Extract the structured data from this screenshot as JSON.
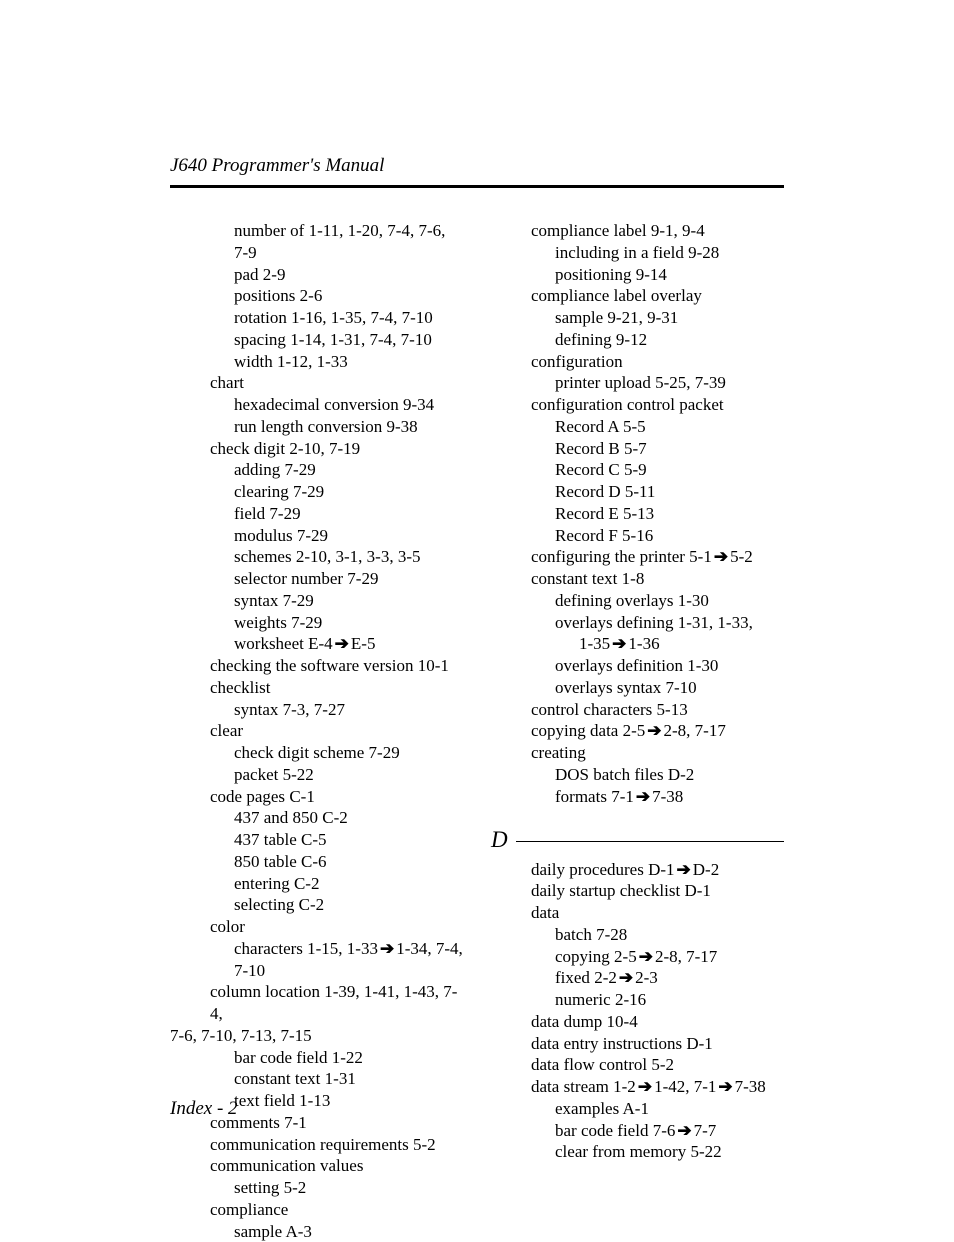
{
  "header": {
    "title": "J640 Programmer's Manual"
  },
  "footer": {
    "label": "Index - 2"
  },
  "section": {
    "letter": "D"
  },
  "arrow_glyph": "➔",
  "left": [
    {
      "i": 2,
      "t": "number of",
      "sep": "  ",
      "p": "1-11, 1-20, 7-4, 7-6, 7-9"
    },
    {
      "i": 2,
      "t": "pad",
      "sep": "  ",
      "p": "2-9"
    },
    {
      "i": 2,
      "t": "positions",
      "sep": "  ",
      "p": "2-6"
    },
    {
      "i": 2,
      "t": "rotation",
      "sep": "  ",
      "p": "1-16, 1-35, 7-4, 7-10"
    },
    {
      "i": 2,
      "t": "spacing",
      "sep": "  ",
      "p": "1-14, 1-31, 7-4, 7-10"
    },
    {
      "i": 2,
      "t": "width",
      "sep": "  ",
      "p": "1-12, 1-33"
    },
    {
      "i": 1,
      "t": "chart",
      "sep": "",
      "p": ""
    },
    {
      "i": 2,
      "t": "hexadecimal conversion",
      "sep": "  ",
      "p": "9-34"
    },
    {
      "i": 2,
      "t": "run length conversion",
      "sep": "  ",
      "p": "9-38"
    },
    {
      "i": 1,
      "t": "check digit",
      "sep": "  ",
      "p": "2-10, 7-19"
    },
    {
      "i": 2,
      "t": "adding",
      "sep": "  ",
      "p": "7-29"
    },
    {
      "i": 2,
      "t": "clearing",
      "sep": "  ",
      "p": "7-29"
    },
    {
      "i": 2,
      "t": "field",
      "sep": "  ",
      "p": "7-29"
    },
    {
      "i": 2,
      "t": "modulus",
      "sep": "  ",
      "p": "7-29"
    },
    {
      "i": 2,
      "t": "schemes",
      "sep": "  ",
      "p": "2-10, 3-1, 3-3, 3-5"
    },
    {
      "i": 2,
      "t": "selector number",
      "sep": "  ",
      "p": "7-29"
    },
    {
      "i": 2,
      "t": "syntax",
      "sep": "  ",
      "p": "7-29"
    },
    {
      "i": 2,
      "t": "weights",
      "sep": "  ",
      "p": "7-29"
    },
    {
      "i": 2,
      "t": "worksheet",
      "sep": "  ",
      "p": "E-4",
      "arrow_to": "E-5"
    },
    {
      "i": 1,
      "t": "checking the software version",
      "sep": "  ",
      "p": "10-1"
    },
    {
      "i": 1,
      "t": "checklist",
      "sep": "",
      "p": ""
    },
    {
      "i": 2,
      "t": "syntax",
      "sep": "  ",
      "p": "7-3, 7-27"
    },
    {
      "i": 1,
      "t": "clear",
      "sep": "",
      "p": ""
    },
    {
      "i": 2,
      "t": "check digit scheme",
      "sep": "  ",
      "p": "7-29"
    },
    {
      "i": 2,
      "t": "packet",
      "sep": "  ",
      "p": "5-22"
    },
    {
      "i": 1,
      "t": "code pages",
      "sep": "  ",
      "p": "C-1"
    },
    {
      "i": 2,
      "t": "437 and 850",
      "sep": "  ",
      "p": "C-2"
    },
    {
      "i": 2,
      "t": "437 table",
      "sep": "  ",
      "p": "C-5"
    },
    {
      "i": 2,
      "t": "850 table",
      "sep": "  ",
      "p": "C-6"
    },
    {
      "i": 2,
      "t": "entering",
      "sep": "  ",
      "p": "C-2"
    },
    {
      "i": 2,
      "t": "selecting",
      "sep": "  ",
      "p": "C-2"
    },
    {
      "i": 1,
      "t": "color",
      "sep": "",
      "p": ""
    },
    {
      "i": 2,
      "t": "characters",
      "sep": "  ",
      "p": "1-15, 1-33",
      "arrow_to": "1-34, 7-4, 7-10"
    },
    {
      "i": 1,
      "t": "column location",
      "sep": "  ",
      "p": "1-39, 1-41, 1-43, 7-4,"
    },
    {
      "i": 0,
      "t": "7-6, 7-10, 7-13, 7-15",
      "sep": "",
      "p": ""
    },
    {
      "i": 2,
      "t": "bar code field",
      "sep": "  ",
      "p": "1-22"
    },
    {
      "i": 2,
      "t": "constant text",
      "sep": "  ",
      "p": "1-31"
    },
    {
      "i": 2,
      "t": "text field",
      "sep": "  ",
      "p": "1-13"
    },
    {
      "i": 1,
      "t": "comments",
      "sep": "  ",
      "p": "7-1"
    },
    {
      "i": 1,
      "t": "communication requirements",
      "sep": "  ",
      "p": "5-2"
    },
    {
      "i": 1,
      "t": "communication values",
      "sep": "",
      "p": ""
    },
    {
      "i": 2,
      "t": "setting",
      "sep": " ",
      "p": "5-2"
    },
    {
      "i": 1,
      "t": "compliance",
      "sep": "",
      "p": ""
    },
    {
      "i": 2,
      "t": "sample",
      "sep": "  ",
      "p": "A-3"
    }
  ],
  "right_a": [
    {
      "i": 1,
      "t": "compliance label",
      "sep": "  ",
      "p": "9-1, 9-4"
    },
    {
      "i": 2,
      "t": "including in a field",
      "sep": "  ",
      "p": "9-28"
    },
    {
      "i": 2,
      "t": "positioning",
      "sep": "  ",
      "p": "9-14"
    },
    {
      "i": 1,
      "t": "compliance label overlay",
      "sep": "",
      "p": ""
    },
    {
      "i": 2,
      "t": "sample",
      "sep": "  ",
      "p": "9-21, 9-31"
    },
    {
      "i": 2,
      "t": "defining",
      "sep": "  ",
      "p": "9-12"
    },
    {
      "i": 1,
      "t": "configuration",
      "sep": "",
      "p": ""
    },
    {
      "i": 2,
      "t": " printer upload",
      "sep": "  ",
      "p": "5-25, 7-39"
    },
    {
      "i": 1,
      "t": "configuration control packet",
      "sep": "",
      "p": ""
    },
    {
      "i": 2,
      "t": "Record A",
      "sep": "  ",
      "p": "5-5"
    },
    {
      "i": 2,
      "t": "Record B",
      "sep": "  ",
      "p": "5-7"
    },
    {
      "i": 2,
      "t": "Record C",
      "sep": "  ",
      "p": "5-9"
    },
    {
      "i": 2,
      "t": "Record D",
      "sep": "  ",
      "p": "5-11"
    },
    {
      "i": 2,
      "t": "Record E",
      "sep": "  ",
      "p": "5-13"
    },
    {
      "i": 2,
      "t": "Record F",
      "sep": "  ",
      "p": "5-16"
    },
    {
      "i": 1,
      "t": "configuring the printer",
      "sep": "  ",
      "p": "5-1",
      "arrow_to": "5-2"
    },
    {
      "i": 1,
      "t": "constant text",
      "sep": "  ",
      "p": "1-8"
    },
    {
      "i": 2,
      "t": "defining overlays",
      "sep": "  ",
      "p": "1-30"
    },
    {
      "i": 2,
      "t": "overlays defining",
      "sep": "  ",
      "p": "1-31, 1-33,"
    },
    {
      "i": 3,
      "t": "1-35",
      "sep": "",
      "p": "",
      "arrow_to": "1-36"
    },
    {
      "i": 2,
      "t": "overlays definition",
      "sep": "  ",
      "p": "1-30"
    },
    {
      "i": 2,
      "t": "overlays syntax",
      "sep": "  ",
      "p": "7-10"
    },
    {
      "i": 1,
      "t": "control characters",
      "sep": "  ",
      "p": "5-13"
    },
    {
      "i": 1,
      "t": "copying data",
      "sep": "  ",
      "p": "2-5",
      "arrow_to": "2-8, 7-17"
    },
    {
      "i": 1,
      "t": "creating",
      "sep": "",
      "p": ""
    },
    {
      "i": 2,
      "t": "DOS batch files",
      "sep": "  ",
      "p": "D-2"
    },
    {
      "i": 2,
      "t": "formats",
      "sep": "  ",
      "p": "7-1",
      "arrow_to": "7-38"
    }
  ],
  "right_b": [
    {
      "i": 1,
      "t": "daily procedures",
      "sep": "  ",
      "p": "D-1",
      "arrow_to": "D-2"
    },
    {
      "i": 1,
      "t": "daily startup checklist",
      "sep": "  ",
      "p": "D-1"
    },
    {
      "i": 1,
      "t": "data",
      "sep": "",
      "p": ""
    },
    {
      "i": 2,
      "t": "batch",
      "sep": "  ",
      "p": "7-28"
    },
    {
      "i": 2,
      "t": "copying",
      "sep": "  ",
      "p": "2-5",
      "arrow_to": "2-8, 7-17"
    },
    {
      "i": 2,
      "t": "fixed",
      "sep": "  ",
      "p": "2-2",
      "arrow_to": "2-3"
    },
    {
      "i": 2,
      "t": "numeric",
      "sep": "  ",
      "p": "2-16"
    },
    {
      "i": 1,
      "t": "data dump",
      "sep": "  ",
      "p": "10-4"
    },
    {
      "i": 1,
      "t": "data entry instructions",
      "sep": "  ",
      "p": "D-1"
    },
    {
      "i": 1,
      "t": "data flow control",
      "sep": "  ",
      "p": "5-2"
    },
    {
      "i": 1,
      "t": "data stream",
      "sep": "  ",
      "p": "1-2",
      "arrow_to": "1-42, 7-1",
      "arrow2_to": "7-38"
    },
    {
      "i": 2,
      "t": " examples",
      "sep": "  ",
      "p": "A-1"
    },
    {
      "i": 2,
      "t": "bar code field",
      "sep": "  ",
      "p": "7-6",
      "arrow_to": "7-7"
    },
    {
      "i": 2,
      "t": "clear from memory",
      "sep": "  ",
      "p": "5-22"
    }
  ]
}
